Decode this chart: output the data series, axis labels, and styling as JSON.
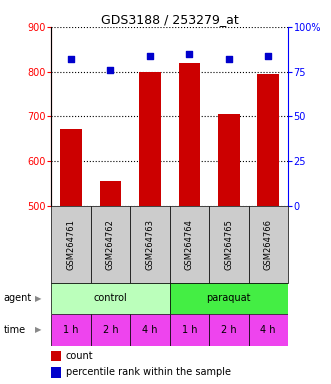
{
  "title": "GDS3188 / 253279_at",
  "samples": [
    "GSM264761",
    "GSM264762",
    "GSM264763",
    "GSM264764",
    "GSM264765",
    "GSM264766"
  ],
  "counts": [
    672,
    556,
    800,
    820,
    706,
    795
  ],
  "percentile_ranks": [
    82,
    76,
    84,
    85,
    82,
    84
  ],
  "ylim_left": [
    500,
    900
  ],
  "ylim_right": [
    0,
    100
  ],
  "yticks_left": [
    500,
    600,
    700,
    800,
    900
  ],
  "yticks_right": [
    0,
    25,
    50,
    75,
    100
  ],
  "bar_color": "#cc0000",
  "dot_color": "#0000cc",
  "agent_labels": [
    "control",
    "paraquat"
  ],
  "agent_color_control": "#bbffbb",
  "agent_color_paraquat": "#44ee44",
  "time_labels": [
    "1 h",
    "2 h",
    "4 h",
    "1 h",
    "2 h",
    "4 h"
  ],
  "time_color": "#ee44ee",
  "background_color": "#ffffff",
  "sample_bg_color": "#cccccc",
  "title_fontsize": 9,
  "axis_fontsize": 7,
  "label_fontsize": 7,
  "legend_fontsize": 7
}
